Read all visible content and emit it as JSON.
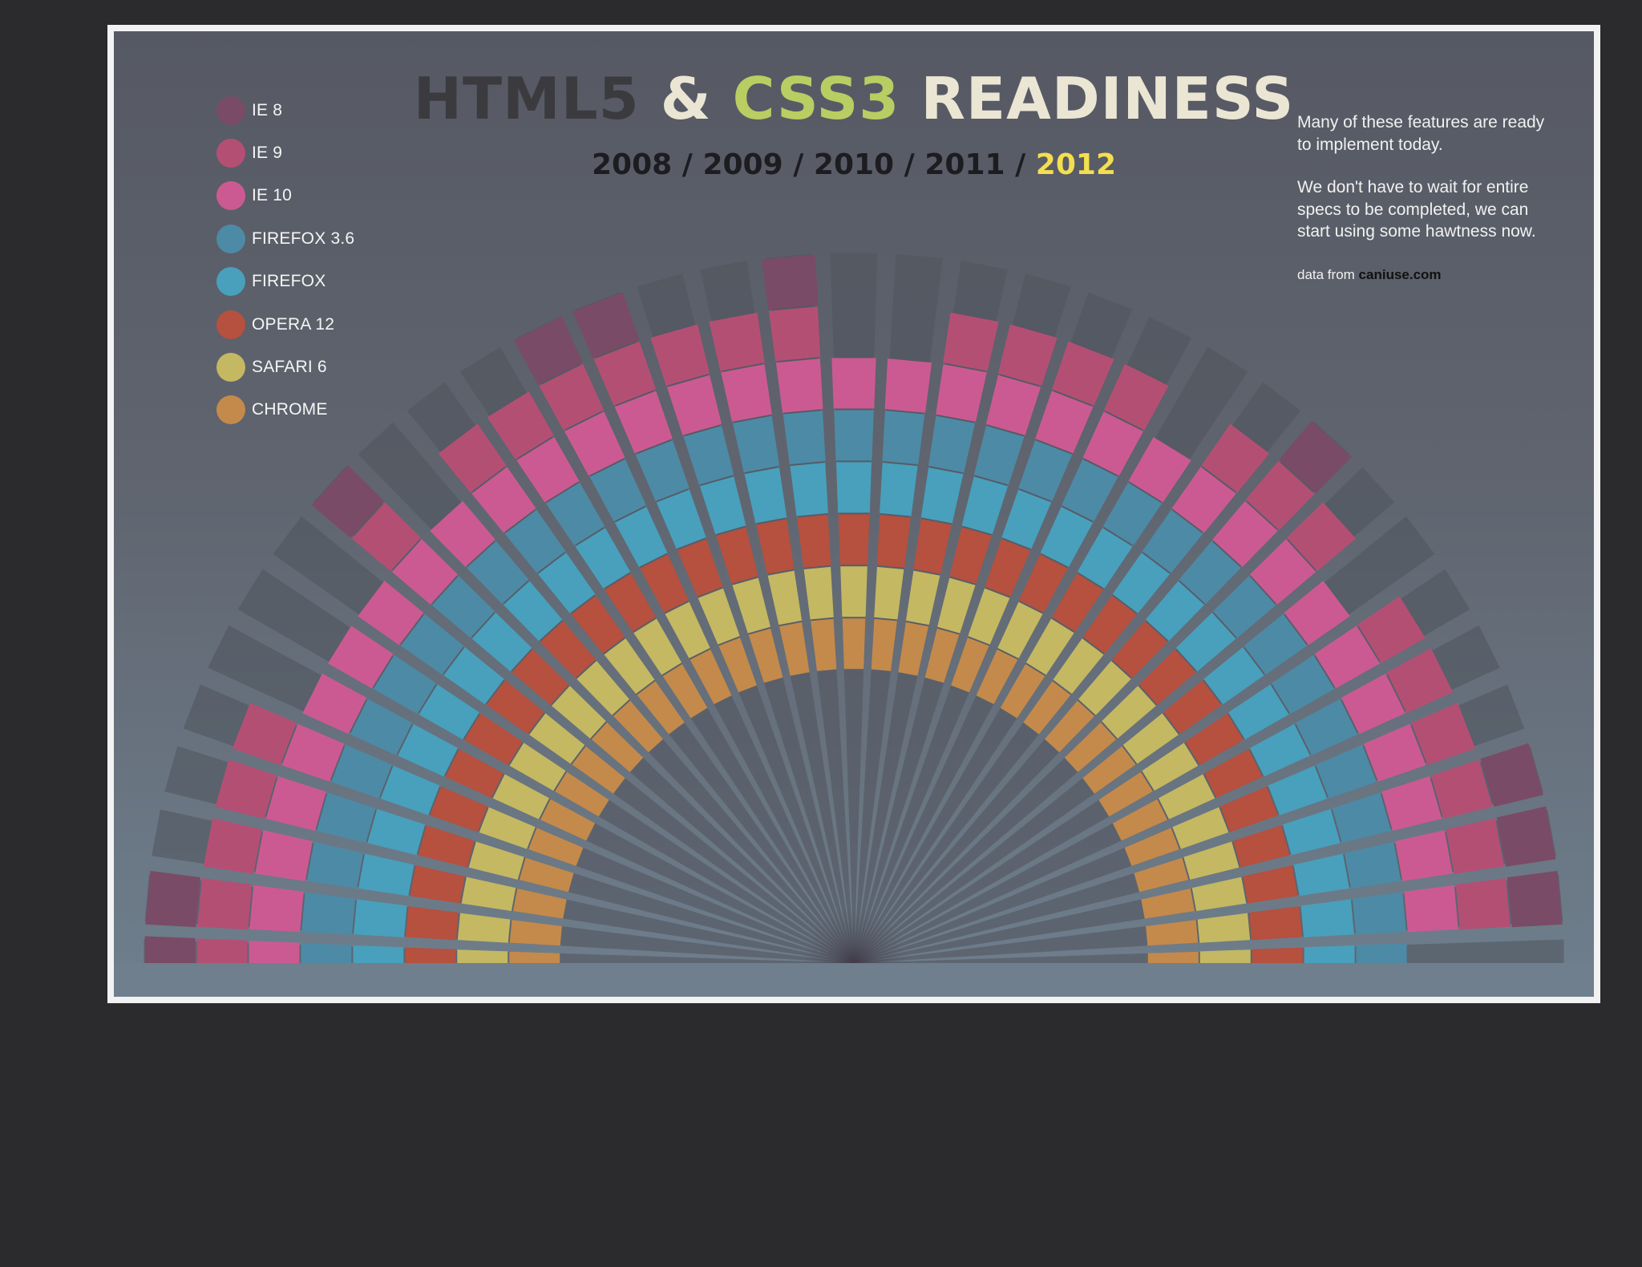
{
  "chart_data": {
    "type": "radial-bar",
    "title_parts": [
      "HTML5",
      "&",
      "CSS3",
      "READINESS"
    ],
    "years": [
      "2008",
      "2009",
      "2010",
      "2011",
      "2012"
    ],
    "years_separator": "/",
    "current_year": "2012",
    "note": [
      "Many of these features are ready to implement today.",
      "We don't have to wait for entire specs to be completed, we can start using some hawtness now."
    ],
    "source_prefix": "data from",
    "source": "caniuse.com",
    "legend": [
      {
        "label": "IE 8",
        "color": "#7a4b66"
      },
      {
        "label": "IE 9",
        "color": "#b44f74"
      },
      {
        "label": "IE 10",
        "color": "#cc5a92"
      },
      {
        "label": "FIREFOX 3.6",
        "color": "#4d8aa6"
      },
      {
        "label": "FIREFOX",
        "color": "#48a0bc"
      },
      {
        "label": "OPERA 12",
        "color": "#b6503f"
      },
      {
        "label": "SAFARI 6",
        "color": "#c4b862"
      },
      {
        "label": "CHROME",
        "color": "#c48a4b"
      }
    ],
    "series": [
      {
        "name": "IE 8",
        "values": [
          1,
          1,
          0,
          0,
          0,
          0,
          0,
          0,
          1,
          0,
          0,
          0,
          1,
          1,
          0,
          0,
          1,
          0,
          0,
          0,
          0,
          0,
          0,
          0,
          0,
          1,
          0,
          0,
          0,
          0,
          0,
          1,
          1,
          1,
          0
        ]
      },
      {
        "name": "IE 9",
        "values": [
          1,
          1,
          1,
          1,
          1,
          0,
          0,
          0,
          1,
          0,
          1,
          1,
          1,
          1,
          1,
          1,
          1,
          0,
          0,
          1,
          1,
          1,
          1,
          0,
          1,
          1,
          1,
          0,
          1,
          1,
          1,
          1,
          1,
          1,
          0
        ]
      },
      {
        "name": "IE 10",
        "values": [
          1,
          1,
          1,
          1,
          1,
          1,
          1,
          1,
          1,
          1,
          1,
          1,
          1,
          1,
          1,
          1,
          1,
          1,
          1,
          1,
          1,
          1,
          1,
          1,
          1,
          1,
          1,
          1,
          1,
          1,
          1,
          1,
          1,
          1,
          0
        ]
      },
      {
        "name": "FIREFOX 3.6",
        "values": [
          1,
          1,
          1,
          1,
          1,
          1,
          1,
          1,
          1,
          1,
          1,
          1,
          1,
          1,
          1,
          1,
          1,
          1,
          1,
          1,
          1,
          1,
          1,
          1,
          1,
          1,
          1,
          1,
          1,
          1,
          1,
          1,
          1,
          1,
          1
        ]
      },
      {
        "name": "FIREFOX",
        "values": [
          1,
          1,
          1,
          1,
          1,
          1,
          1,
          1,
          1,
          1,
          1,
          1,
          1,
          1,
          1,
          1,
          1,
          1,
          1,
          1,
          1,
          1,
          1,
          1,
          1,
          1,
          1,
          1,
          1,
          1,
          1,
          1,
          1,
          1,
          1
        ]
      },
      {
        "name": "OPERA 12",
        "values": [
          1,
          1,
          1,
          1,
          1,
          1,
          1,
          1,
          1,
          1,
          1,
          1,
          1,
          1,
          1,
          1,
          1,
          1,
          1,
          1,
          1,
          1,
          1,
          1,
          1,
          1,
          1,
          1,
          1,
          1,
          1,
          1,
          1,
          1,
          1
        ]
      },
      {
        "name": "SAFARI 6",
        "values": [
          1,
          1,
          1,
          1,
          1,
          1,
          1,
          1,
          1,
          1,
          1,
          1,
          1,
          1,
          1,
          1,
          1,
          1,
          1,
          1,
          1,
          1,
          1,
          1,
          1,
          1,
          1,
          1,
          1,
          1,
          1,
          1,
          1,
          1,
          1
        ]
      },
      {
        "name": "CHROME",
        "values": [
          1,
          1,
          1,
          1,
          1,
          1,
          1,
          1,
          1,
          1,
          1,
          1,
          1,
          1,
          1,
          1,
          1,
          1,
          1,
          1,
          1,
          1,
          1,
          1,
          1,
          1,
          1,
          1,
          1,
          1,
          1,
          1,
          1,
          1,
          1
        ]
      }
    ],
    "grid": false,
    "legend_position": "top-left"
  }
}
